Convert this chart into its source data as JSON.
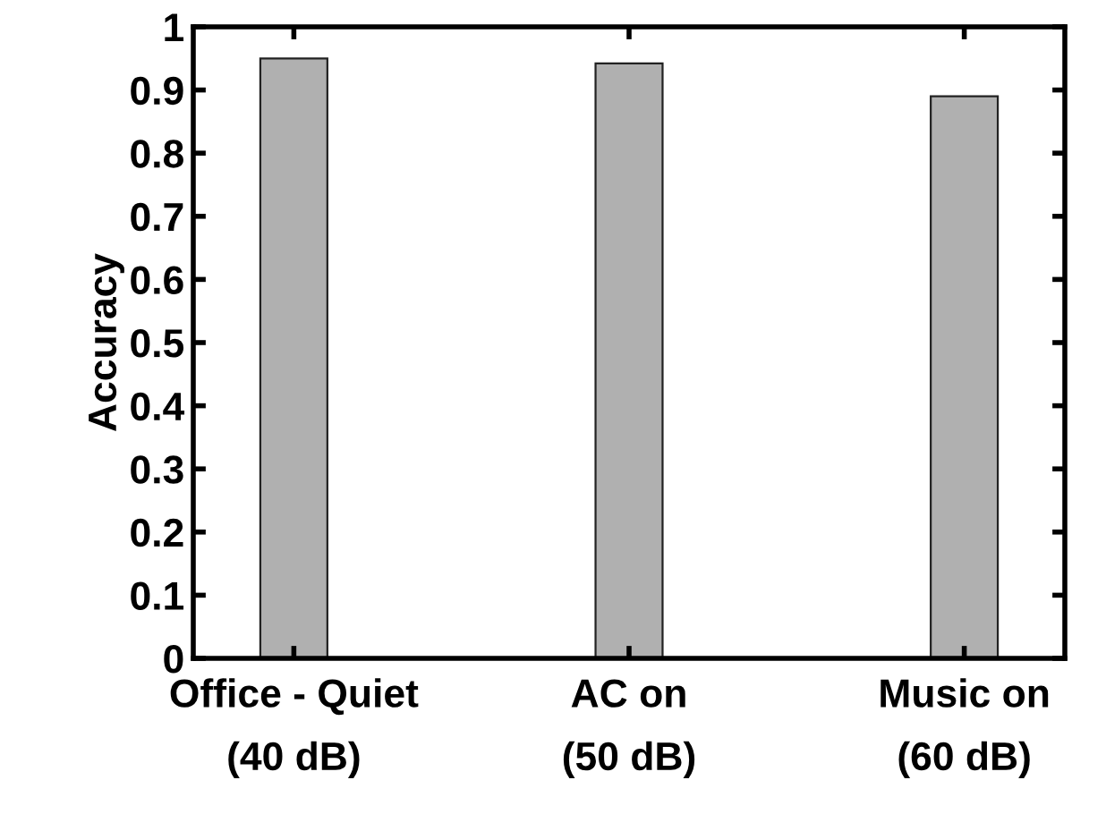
{
  "chart_data": {
    "type": "bar",
    "ylabel": "Accuracy",
    "categories": [
      "Office - Quiet\n(40 dB)",
      "AC on\n(50 dB)",
      "Music on\n(60 dB)"
    ],
    "values": [
      0.95,
      0.942,
      0.89
    ],
    "color": "#b0b0b0",
    "ylim": [
      0,
      1
    ],
    "yticks": [
      0,
      0.1,
      0.2,
      0.3,
      0.4,
      0.5,
      0.6,
      0.7,
      0.8,
      0.9,
      1
    ],
    "grid": false,
    "legend": false
  }
}
